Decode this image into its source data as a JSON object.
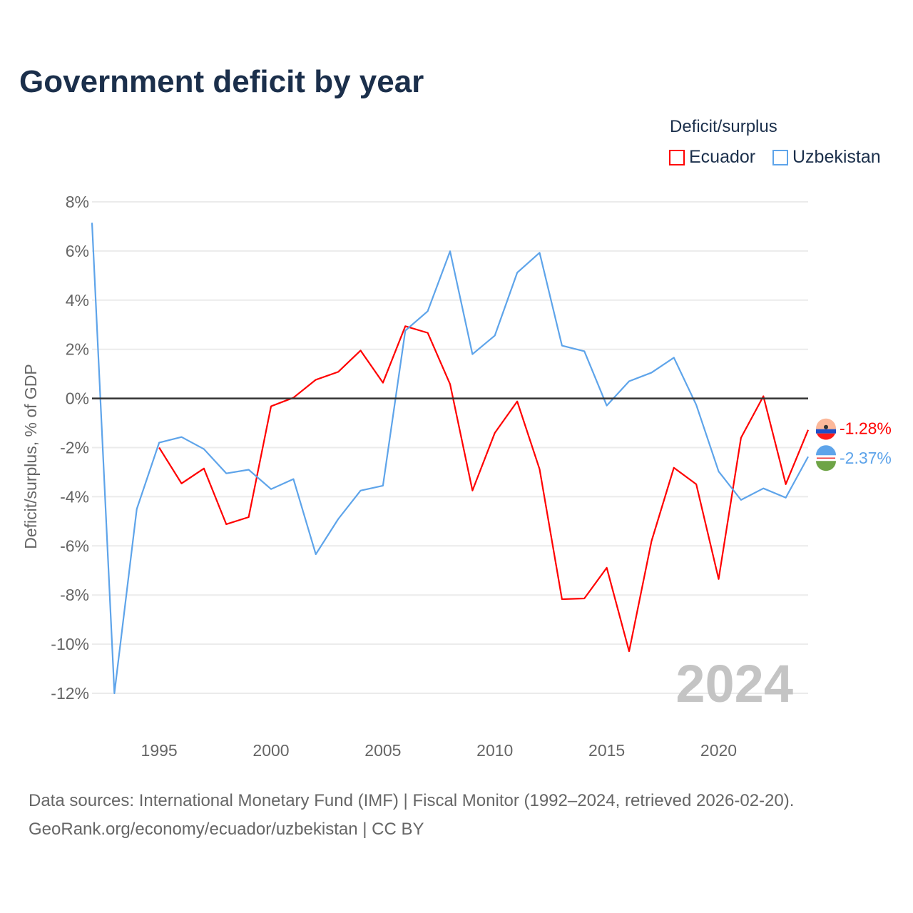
{
  "title": "Government deficit by year",
  "legend": {
    "title": "Deficit/surplus",
    "items": [
      {
        "name": "Ecuador",
        "color": "#ff0000"
      },
      {
        "name": "Uzbekistan",
        "color": "#5ea4ea"
      }
    ]
  },
  "watermark_year": "2024",
  "source_line1": "Data sources: International Monetary Fund (IMF) | Fiscal Monitor (1992–2024, retrieved 2026-02-20).",
  "source_line2": "GeoRank.org/economy/ecuador/uzbekistan | CC BY",
  "chart_data": {
    "type": "line",
    "title": "Government deficit by year",
    "xlabel": "",
    "ylabel": "Deficit/surplus, % of GDP",
    "xlim": [
      1992,
      2024
    ],
    "ylim": [
      -12,
      8
    ],
    "x_ticks": [
      1995,
      2000,
      2005,
      2010,
      2015,
      2020
    ],
    "y_ticks": [
      8,
      6,
      4,
      2,
      0,
      -2,
      -4,
      -6,
      -8,
      -10,
      -12
    ],
    "y_tick_labels": [
      "8%",
      "6%",
      "4%",
      "2%",
      "0%",
      "-2%",
      "-4%",
      "-6%",
      "-8%",
      "-10%",
      "-12%"
    ],
    "grid": true,
    "legend_position": "top-right",
    "series": [
      {
        "name": "Ecuador",
        "color": "#ff0000",
        "end_label": "-1.28%",
        "start_year": 1995,
        "values": [
          -2.0,
          -3.46,
          -2.85,
          -5.12,
          -4.83,
          -0.32,
          0.03,
          0.76,
          1.08,
          1.95,
          0.64,
          2.94,
          2.67,
          0.58,
          -3.75,
          -1.4,
          -0.12,
          -2.88,
          -8.17,
          -8.14,
          -6.89,
          -10.29,
          -5.81,
          -2.82,
          -3.49,
          -7.35,
          -1.6,
          0.09,
          -3.49,
          -1.28
        ]
      },
      {
        "name": "Uzbekistan",
        "color": "#5ea4ea",
        "end_label": "-2.37%",
        "start_year": 1992,
        "values": [
          7.15,
          -12.0,
          -4.5,
          -1.8,
          -1.57,
          -2.06,
          -3.05,
          -2.9,
          -3.69,
          -3.28,
          -6.34,
          -4.91,
          -3.75,
          -3.55,
          2.76,
          3.55,
          5.99,
          1.8,
          2.56,
          5.12,
          5.93,
          2.15,
          1.92,
          -0.29,
          0.7,
          1.05,
          1.66,
          -0.26,
          -2.97,
          -4.13,
          -3.66,
          -4.04,
          -2.37
        ]
      }
    ]
  }
}
